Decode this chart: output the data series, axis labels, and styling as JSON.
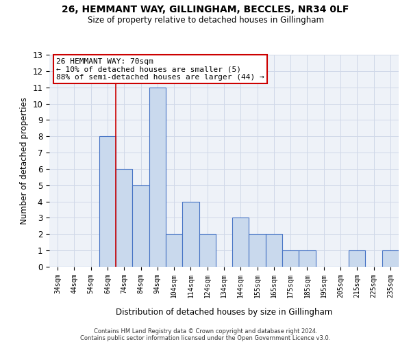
{
  "title1": "26, HEMMANT WAY, GILLINGHAM, BECCLES, NR34 0LF",
  "title2": "Size of property relative to detached houses in Gillingham",
  "xlabel": "Distribution of detached houses by size in Gillingham",
  "ylabel": "Number of detached properties",
  "categories": [
    "34sqm",
    "44sqm",
    "54sqm",
    "64sqm",
    "74sqm",
    "84sqm",
    "94sqm",
    "104sqm",
    "114sqm",
    "124sqm",
    "134sqm",
    "144sqm",
    "155sqm",
    "165sqm",
    "175sqm",
    "185sqm",
    "195sqm",
    "205sqm",
    "215sqm",
    "225sqm",
    "235sqm"
  ],
  "values": [
    0,
    0,
    0,
    8,
    6,
    5,
    11,
    2,
    4,
    2,
    0,
    3,
    2,
    2,
    1,
    1,
    0,
    0,
    1,
    0,
    1
  ],
  "bar_color": "#c9d9ed",
  "bar_edge_color": "#4472c4",
  "red_line_x": 3.5,
  "annotation_line1": "26 HEMMANT WAY: 70sqm",
  "annotation_line2": "← 10% of detached houses are smaller (5)",
  "annotation_line3": "88% of semi-detached houses are larger (44) →",
  "annotation_box_color": "#ffffff",
  "annotation_box_edge_color": "#cc0000",
  "ylim": [
    0,
    13
  ],
  "yticks": [
    0,
    1,
    2,
    3,
    4,
    5,
    6,
    7,
    8,
    9,
    10,
    11,
    12,
    13
  ],
  "footer1": "Contains HM Land Registry data © Crown copyright and database right 2024.",
  "footer2": "Contains public sector information licensed under the Open Government Licence v3.0.",
  "grid_color": "#d0d8e8",
  "background_color": "#eef2f8"
}
